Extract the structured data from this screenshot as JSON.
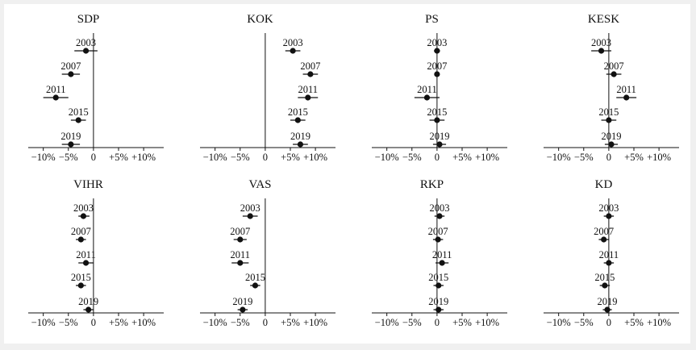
{
  "chart_data": {
    "type": "scatter",
    "description_of_marks": "point estimates with horizontal interval bars",
    "xlim": [
      -13,
      14
    ],
    "x_ticks": [
      -10,
      -5,
      0,
      5,
      10
    ],
    "x_tick_labels": [
      "−10%",
      "−5%",
      "0",
      "+5%",
      "+10%"
    ],
    "panels": [
      {
        "title": "SDP",
        "points": [
          {
            "year": "2003",
            "value": -1.5,
            "low": -3.8,
            "high": 0.8
          },
          {
            "year": "2007",
            "value": -4.5,
            "low": -6.3,
            "high": -2.7
          },
          {
            "year": "2011",
            "value": -7.5,
            "low": -10.0,
            "high": -5.0
          },
          {
            "year": "2015",
            "value": -3.0,
            "low": -4.5,
            "high": -1.5
          },
          {
            "year": "2019",
            "value": -4.5,
            "low": -6.3,
            "high": -2.7
          }
        ]
      },
      {
        "title": "KOK",
        "points": [
          {
            "year": "2003",
            "value": 5.5,
            "low": 4.0,
            "high": 7.0
          },
          {
            "year": "2007",
            "value": 9.0,
            "low": 7.5,
            "high": 10.5
          },
          {
            "year": "2011",
            "value": 8.5,
            "low": 6.5,
            "high": 10.5
          },
          {
            "year": "2015",
            "value": 6.5,
            "low": 5.0,
            "high": 8.0
          },
          {
            "year": "2019",
            "value": 7.0,
            "low": 5.5,
            "high": 8.5
          }
        ]
      },
      {
        "title": "PS",
        "points": [
          {
            "year": "2003",
            "value": 0,
            "low": -0.6,
            "high": 0.6
          },
          {
            "year": "2007",
            "value": 0,
            "low": -0.5,
            "high": 0.5
          },
          {
            "year": "2011",
            "value": -2.0,
            "low": -4.5,
            "high": 0.5
          },
          {
            "year": "2015",
            "value": 0,
            "low": -1.5,
            "high": 1.5
          },
          {
            "year": "2019",
            "value": 0.5,
            "low": -0.8,
            "high": 1.8
          }
        ]
      },
      {
        "title": "KESK",
        "points": [
          {
            "year": "2003",
            "value": -1.5,
            "low": -3.5,
            "high": 0.5
          },
          {
            "year": "2007",
            "value": 1.0,
            "low": -0.5,
            "high": 2.5
          },
          {
            "year": "2011",
            "value": 3.5,
            "low": 1.5,
            "high": 5.5
          },
          {
            "year": "2015",
            "value": 0,
            "low": -1.5,
            "high": 1.5
          },
          {
            "year": "2019",
            "value": 0.5,
            "low": -0.8,
            "high": 1.8
          }
        ]
      },
      {
        "title": "VIHR",
        "points": [
          {
            "year": "2003",
            "value": -2.0,
            "low": -3.0,
            "high": -0.8
          },
          {
            "year": "2007",
            "value": -2.5,
            "low": -3.5,
            "high": -1.5
          },
          {
            "year": "2011",
            "value": -1.5,
            "low": -3.0,
            "high": 0
          },
          {
            "year": "2015",
            "value": -2.5,
            "low": -3.5,
            "high": -1.5
          },
          {
            "year": "2019",
            "value": -1.0,
            "low": -2.0,
            "high": 0
          }
        ]
      },
      {
        "title": "VAS",
        "points": [
          {
            "year": "2003",
            "value": -3.0,
            "low": -4.5,
            "high": -1.5
          },
          {
            "year": "2007",
            "value": -5.0,
            "low": -6.3,
            "high": -3.7
          },
          {
            "year": "2011",
            "value": -5.0,
            "low": -6.7,
            "high": -3.3
          },
          {
            "year": "2015",
            "value": -2.0,
            "low": -3.0,
            "high": -1.0
          },
          {
            "year": "2019",
            "value": -4.5,
            "low": -5.5,
            "high": -3.5
          }
        ]
      },
      {
        "title": "RKP",
        "points": [
          {
            "year": "2003",
            "value": 0.5,
            "low": -0.5,
            "high": 1.5
          },
          {
            "year": "2007",
            "value": 0.2,
            "low": -0.8,
            "high": 1.2
          },
          {
            "year": "2011",
            "value": 1.0,
            "low": -0.3,
            "high": 2.3
          },
          {
            "year": "2015",
            "value": 0.3,
            "low": -0.7,
            "high": 1.3
          },
          {
            "year": "2019",
            "value": 0.3,
            "low": -0.7,
            "high": 1.3
          }
        ]
      },
      {
        "title": "KD",
        "points": [
          {
            "year": "2003",
            "value": 0,
            "low": -1.0,
            "high": 1.0
          },
          {
            "year": "2007",
            "value": -1.0,
            "low": -2.0,
            "high": 0
          },
          {
            "year": "2011",
            "value": 0,
            "low": -1.0,
            "high": 1.0
          },
          {
            "year": "2015",
            "value": -0.8,
            "low": -1.8,
            "high": 0.2
          },
          {
            "year": "2019",
            "value": -0.3,
            "low": -1.2,
            "high": 0.6
          }
        ]
      }
    ]
  }
}
